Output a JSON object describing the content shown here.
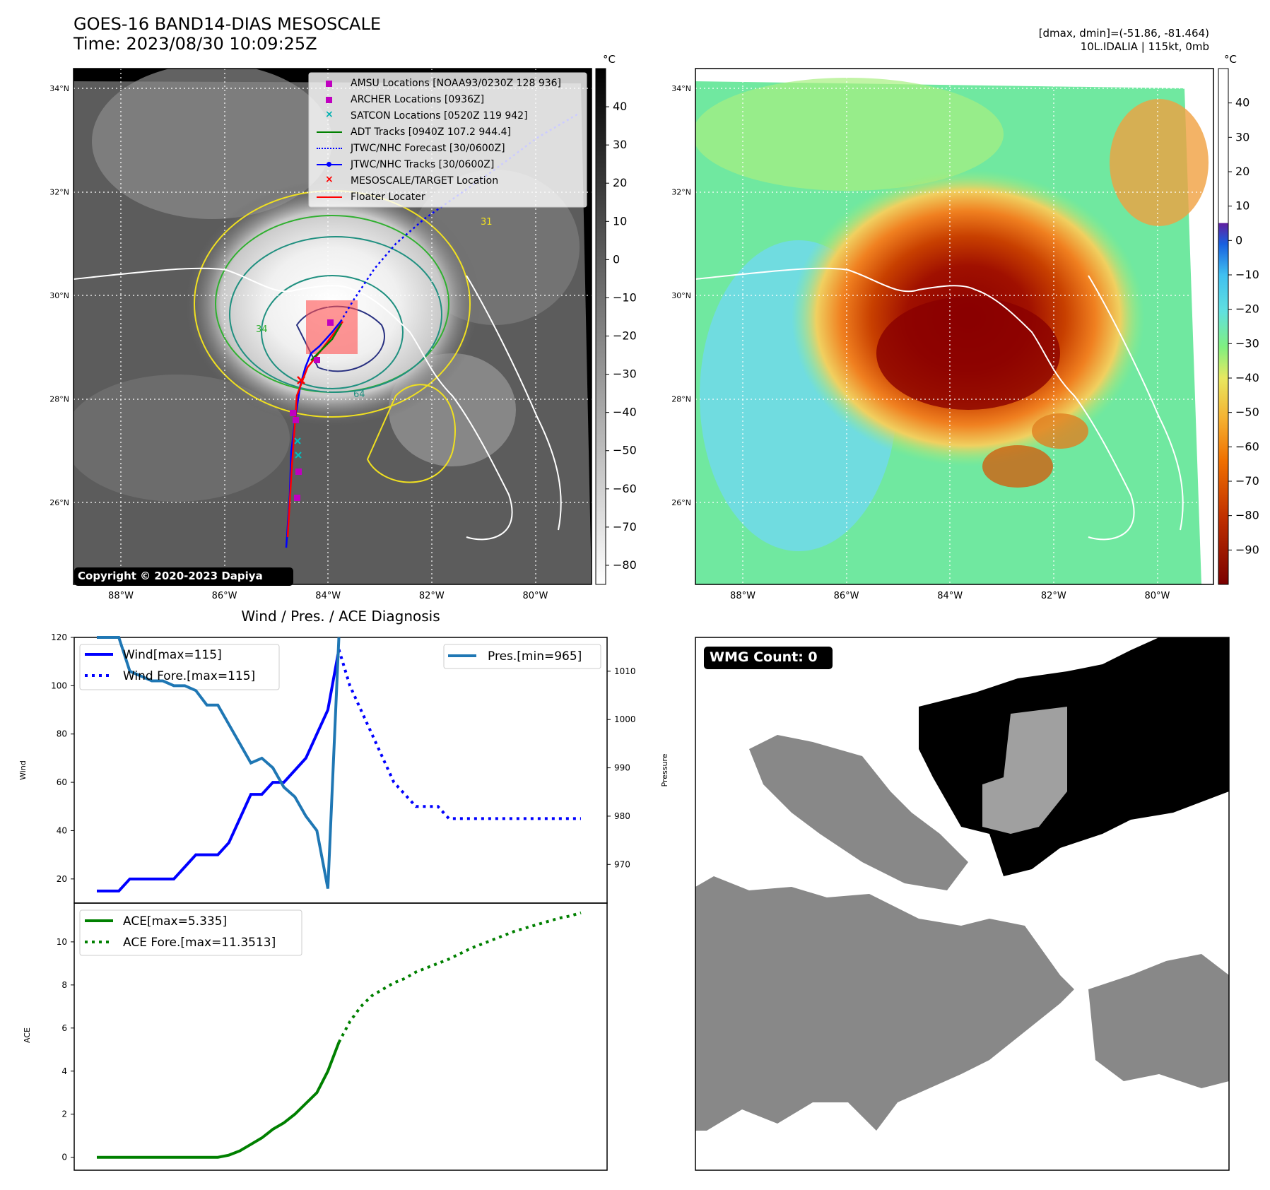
{
  "header": {
    "title": "GOES-16 BAND14-DIAS MESOSCALE",
    "time": "Time: 2023/08/30 10:09:25Z",
    "dmax_dmin": "[dmax, dmin]=(-51.86, -81.464)",
    "storm": "10L.IDALIA | 115kt, 0mb"
  },
  "map_common": {
    "lat_labels": [
      "34°N",
      "32°N",
      "30°N",
      "28°N",
      "26°N"
    ],
    "lat_values": [
      34,
      32,
      30,
      28,
      26
    ],
    "lon_labels": [
      "88°W",
      "86°W",
      "84°W",
      "82°W",
      "80°W"
    ],
    "lon_values": [
      -88,
      -86,
      -84,
      -82,
      -80
    ]
  },
  "ir_panel": {
    "colorbar_unit": "°C",
    "colorbar_ticks": [
      "40",
      "30",
      "20",
      "10",
      "0",
      "−10",
      "−20",
      "−30",
      "−40",
      "−50",
      "−60",
      "−70",
      "−80"
    ],
    "colorbar_values": [
      40,
      30,
      20,
      10,
      0,
      -10,
      -20,
      -30,
      -40,
      -50,
      -60,
      -70,
      -80
    ],
    "colorbar_range": [
      -85,
      50
    ],
    "copyright": "Copyright © 2020-2023 Dapiya",
    "legend": [
      {
        "label": "AMSU Locations [NOAA93/0230Z 128 936]",
        "marker": "square",
        "color": "#c000c0"
      },
      {
        "label": "ARCHER Locations [0936Z]",
        "marker": "square",
        "color": "#c000c0"
      },
      {
        "label": "SATCON Locations [0520Z 119 942]",
        "marker": "x",
        "color": "#00b0b0"
      },
      {
        "label": "ADT Tracks [0940Z 107.2 944.4]",
        "marker": "line",
        "color": "#008000"
      },
      {
        "label": "JTWC/NHC Forecast [30/0600Z]",
        "marker": "dotted",
        "color": "#0000ff"
      },
      {
        "label": "JTWC/NHC Tracks [30/0600Z]",
        "marker": "line-dot",
        "color": "#0000ff"
      },
      {
        "label": "MESOSCALE/TARGET Location",
        "marker": "x",
        "color": "#ff0000"
      },
      {
        "label": "Floater Locater",
        "marker": "line",
        "color": "#ff0000"
      }
    ],
    "contour_labels": [
      "31",
      "64",
      "34"
    ]
  },
  "color_panel": {
    "colorbar_unit": "°C",
    "colorbar_ticks": [
      "40",
      "30",
      "20",
      "10",
      "0",
      "−10",
      "−20",
      "−30",
      "−40",
      "−50",
      "−60",
      "−70",
      "−80",
      "−90"
    ],
    "colorbar_values": [
      40,
      30,
      20,
      10,
      0,
      -10,
      -20,
      -30,
      -40,
      -50,
      -60,
      -70,
      -80,
      -90
    ],
    "colorbar_range": [
      -100,
      50
    ]
  },
  "diag_title": "Wind / Pres. / ACE Diagnosis",
  "wmg": {
    "label": "WMG Count: 0"
  },
  "chart_data": [
    {
      "type": "line",
      "panel": "wind-pressure",
      "ylabel": "Wind",
      "y2label": "Pressure",
      "ylim": [
        10,
        120
      ],
      "y2lim": [
        962,
        1017
      ],
      "yticks": [
        20,
        40,
        60,
        80,
        100,
        120
      ],
      "y2ticks": [
        970,
        980,
        990,
        1000,
        1010
      ],
      "series": [
        {
          "name": "Wind[max=115]",
          "axis": "left",
          "style": "solid",
          "color": "#0000ff",
          "x": [
            0,
            1,
            2,
            3,
            4,
            5,
            6,
            7,
            8,
            9,
            10,
            11,
            12,
            13,
            14,
            15,
            16,
            17,
            18,
            19,
            20,
            21,
            22
          ],
          "y": [
            15,
            15,
            15,
            20,
            20,
            20,
            20,
            20,
            25,
            30,
            30,
            30,
            35,
            45,
            55,
            55,
            60,
            60,
            65,
            70,
            80,
            90,
            115
          ]
        },
        {
          "name": "Wind Fore.[max=115]",
          "axis": "left",
          "style": "dotted",
          "color": "#0000ff",
          "x": [
            22,
            23,
            24,
            25,
            26,
            27,
            28,
            29,
            30,
            31,
            32,
            33,
            34,
            35,
            36,
            37,
            38,
            39,
            40,
            41,
            42,
            43,
            44
          ],
          "y": [
            115,
            100,
            90,
            80,
            70,
            60,
            55,
            50,
            50,
            50,
            45,
            45,
            45,
            45,
            45,
            45,
            45,
            45,
            45,
            45,
            45,
            45,
            45
          ]
        },
        {
          "name": "Pres.[min=965]",
          "axis": "right",
          "style": "solid",
          "color": "#1f77b4",
          "x": [
            0,
            1,
            2,
            3,
            4,
            5,
            6,
            7,
            8,
            9,
            10,
            11,
            12,
            13,
            14,
            15,
            16,
            17,
            18,
            19,
            20,
            21,
            22
          ],
          "y": [
            1017,
            1017,
            1017,
            1010,
            1009,
            1008,
            1008,
            1007,
            1007,
            1006,
            1003,
            1003,
            999,
            995,
            991,
            992,
            990,
            986,
            984,
            980,
            977,
            965,
            1017
          ]
        }
      ]
    },
    {
      "type": "line",
      "panel": "ace",
      "ylabel": "ACE",
      "ylim": [
        -0.6,
        11.8
      ],
      "yticks": [
        0,
        2,
        4,
        6,
        8,
        10
      ],
      "series": [
        {
          "name": "ACE[max=5.335]",
          "style": "solid",
          "color": "#008000",
          "x": [
            0,
            1,
            2,
            3,
            4,
            5,
            6,
            7,
            8,
            9,
            10,
            11,
            12,
            13,
            14,
            15,
            16,
            17,
            18,
            19,
            20,
            21,
            22
          ],
          "y": [
            0,
            0,
            0,
            0,
            0,
            0,
            0,
            0,
            0,
            0,
            0,
            0,
            0.1,
            0.3,
            0.6,
            0.9,
            1.3,
            1.6,
            2.0,
            2.5,
            3.0,
            4.0,
            5.335
          ]
        },
        {
          "name": "ACE Fore.[max=11.3513]",
          "style": "dotted",
          "color": "#008000",
          "x": [
            22,
            23,
            24,
            25,
            26,
            27,
            28,
            29,
            30,
            31,
            32,
            33,
            34,
            35,
            36,
            37,
            38,
            39,
            40,
            41,
            42,
            43,
            44
          ],
          "y": [
            5.335,
            6.3,
            7.0,
            7.5,
            7.8,
            8.1,
            8.3,
            8.6,
            8.8,
            9.0,
            9.2,
            9.45,
            9.7,
            9.9,
            10.1,
            10.3,
            10.5,
            10.65,
            10.8,
            10.95,
            11.1,
            11.2,
            11.3513
          ]
        }
      ]
    }
  ]
}
